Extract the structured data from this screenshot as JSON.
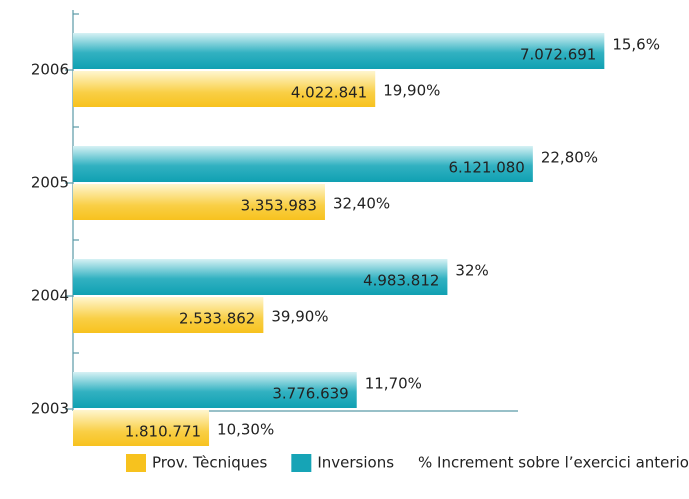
{
  "chart_data": {
    "type": "hbar",
    "categories": [
      "2006",
      "2005",
      "2004",
      "2003"
    ],
    "series": [
      {
        "name": "Prov. Tècniques",
        "color": "#f7c21e",
        "values": [
          4022841,
          3353983,
          2533862,
          1810771
        ],
        "value_labels": [
          "4.022.841",
          "3.353.983",
          "2.533.862",
          "1.810.771"
        ],
        "increment_labels": [
          "19,90%",
          "32,40%",
          "39,90%",
          "10,30%"
        ]
      },
      {
        "name": "Inversions",
        "color": "#16a4b6",
        "values": [
          7072691,
          6121080,
          4983812,
          3776639
        ],
        "value_labels": [
          "7.072.691",
          "6.121.080",
          "4.983.812",
          "3.776.639"
        ],
        "increment_labels": [
          "15,6%",
          "22,80%",
          "32%",
          "11,70%"
        ]
      }
    ],
    "legend_note": "% Increment sobre l’exercici anterior",
    "xlim": [
      0,
      8000000
    ]
  }
}
